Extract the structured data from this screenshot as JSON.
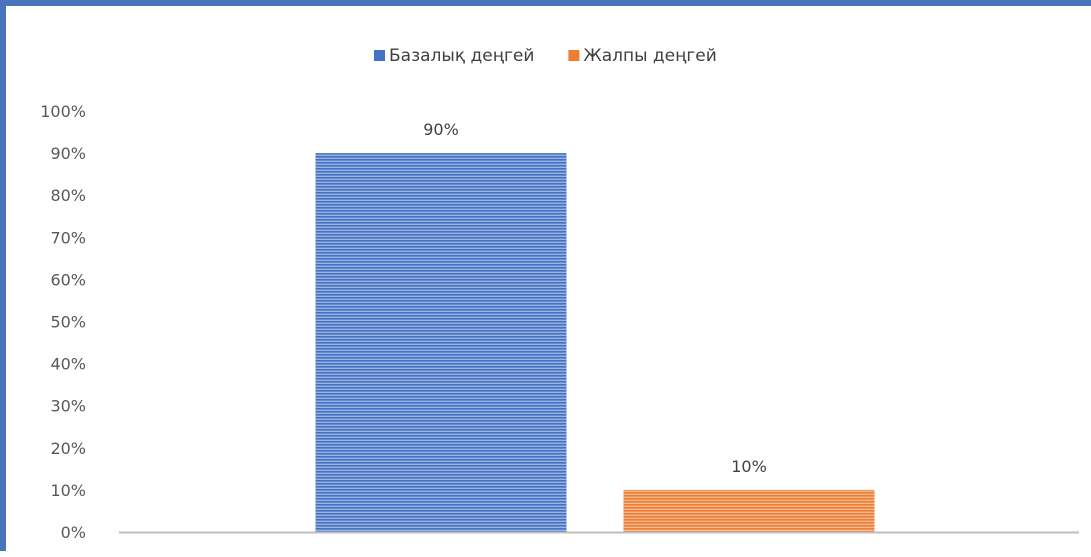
{
  "chart_data": {
    "type": "bar",
    "categories": [
      ""
    ],
    "series": [
      {
        "name": "Базалық деңгей",
        "values": [
          0.9
        ],
        "color": "#4472c4",
        "label": "90%"
      },
      {
        "name": "Жалпы деңгей",
        "values": [
          0.1
        ],
        "color": "#ed7d31",
        "label": "10%"
      }
    ],
    "ylim": [
      0,
      1
    ],
    "yticks": [
      "0%",
      "10%",
      "20%",
      "30%",
      "40%",
      "50%",
      "60%",
      "70%",
      "80%",
      "90%",
      "100%"
    ],
    "grid": false,
    "legend": "top",
    "fill_pattern": "horizontal-lines"
  }
}
